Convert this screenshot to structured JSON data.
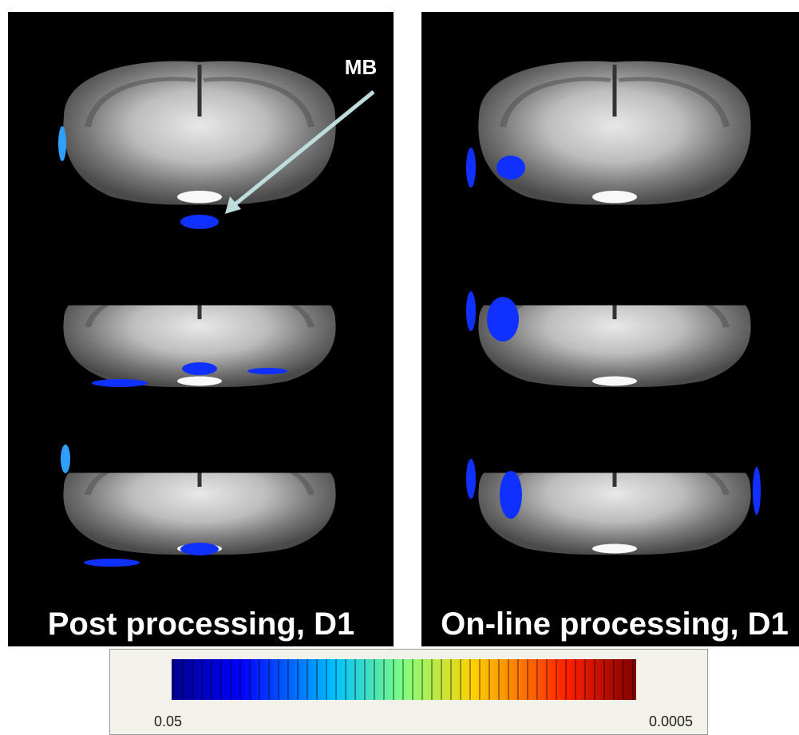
{
  "annotation": "MB",
  "panels": [
    {
      "label": "Post processing, D1"
    },
    {
      "label": "On-line processing, D1"
    }
  ],
  "colorbar": {
    "min_label": "0.05",
    "max_label": "0.0005"
  }
}
